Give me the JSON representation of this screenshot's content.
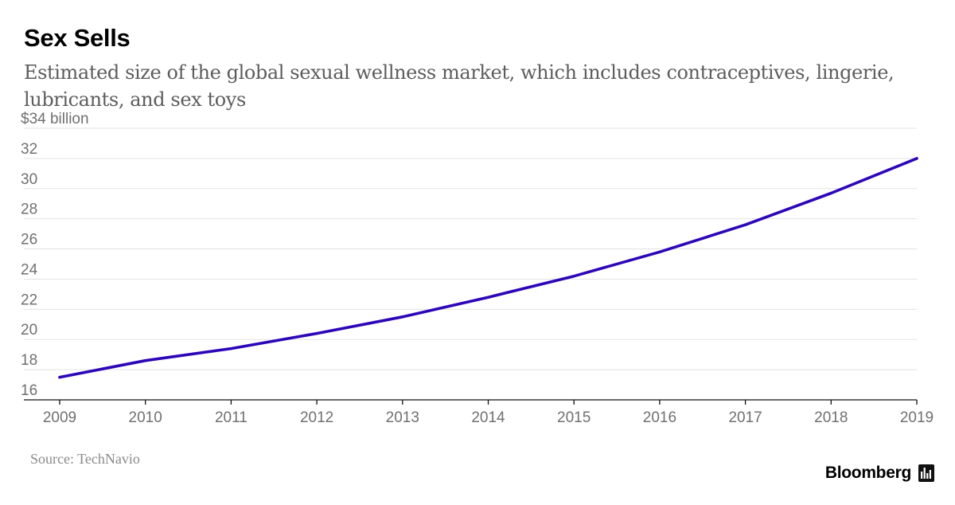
{
  "title": "Sex Sells",
  "subtitle": "Estimated size of the global sexual wellness market, which includes contraceptives, lingerie, lubricants, and sex toys",
  "source": "Source: TechNavio",
  "brand": "Bloomberg",
  "brand_icon": "bloomberg-terminal-icon",
  "colors": {
    "line": "#2d06b8",
    "grid": "#e3e3e3",
    "axis": "#111111",
    "tick": "#707070"
  },
  "chart_data": {
    "type": "line",
    "title": "Sex Sells",
    "xlabel": "",
    "ylabel": "",
    "y_unit_label": "$34 billion",
    "x": [
      2009,
      2010,
      2011,
      2012,
      2013,
      2014,
      2015,
      2016,
      2017,
      2018,
      2019
    ],
    "series": [
      {
        "name": "Global sexual wellness market",
        "values": [
          17.5,
          18.6,
          19.4,
          20.4,
          21.5,
          22.8,
          24.2,
          25.8,
          27.6,
          29.7,
          32.0
        ]
      }
    ],
    "ylim": [
      16,
      34
    ],
    "yticks": [
      16,
      18,
      20,
      22,
      24,
      26,
      28,
      30,
      32,
      34
    ],
    "ytick_labels": [
      "16",
      "18",
      "20",
      "22",
      "24",
      "26",
      "28",
      "30",
      "32",
      "$34 billion"
    ],
    "xticks": [
      "2009",
      "2010",
      "2011",
      "2012",
      "2013",
      "2014",
      "2015",
      "2016",
      "2017",
      "2018",
      "2019"
    ],
    "grid": true
  }
}
